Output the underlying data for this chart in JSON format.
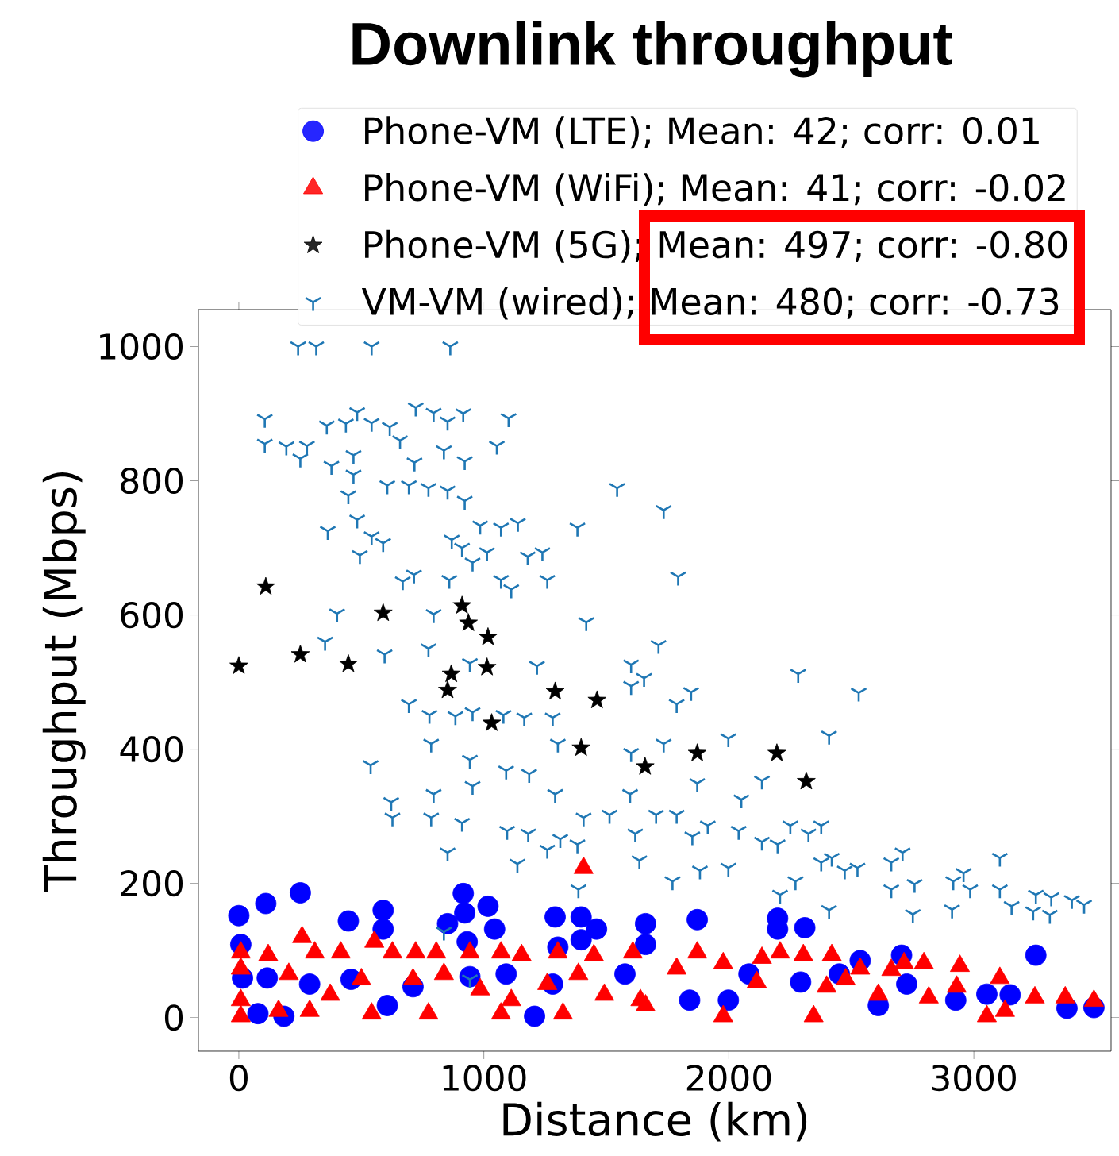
{
  "chart_data": {
    "type": "scatter",
    "title": "Downlink throughput",
    "xlabel": "Distance (km)",
    "ylabel": "Throughput (Mbps)",
    "xlim": [
      -165,
      3560
    ],
    "ylim": [
      -50,
      1055
    ],
    "xticks": [
      0,
      1000,
      2000,
      3000
    ],
    "yticks": [
      0,
      200,
      400,
      600,
      800,
      1000
    ],
    "grid": false,
    "legend": "top",
    "series": [
      {
        "name": "Phone-VM (LTE); Mean: 42; corr: 0.01",
        "color": "#0000ff",
        "marker": "circle",
        "x": [
          0,
          110,
          251,
          447,
          589,
          589,
          916,
          922,
          1017,
          1044,
          852,
          1291,
          1397,
          1460,
          1397,
          8,
          15,
          116,
          78,
          184,
          289,
          458,
          606,
          711,
          932,
          943,
          1091,
          1207,
          1302,
          1281,
          1576,
          1660,
          1871,
          2199,
          2310,
          1660,
          2199,
          2082,
          2293,
          2536,
          2705,
          2726,
          2926,
          3053,
          3148,
          3253,
          3380,
          1840,
          1998,
          2610,
          2451,
          3490
        ],
        "values": [
          152,
          170,
          186,
          144,
          160,
          132,
          185,
          156,
          166,
          132,
          140,
          150,
          150,
          132,
          116,
          109,
          59,
          59,
          6,
          2,
          50,
          57,
          18,
          46,
          113,
          61,
          65,
          2,
          105,
          50,
          65,
          140,
          146,
          148,
          134,
          109,
          132,
          65,
          53,
          85,
          93,
          50,
          26,
          35,
          34,
          93,
          14,
          26,
          26,
          18,
          65,
          15
        ]
      },
      {
        "name": "Phone-VM (WiFi); Mean: 41; corr: -0.02",
        "color": "#ff0000",
        "marker": "triangle",
        "x": [
          1407,
          8,
          8,
          8,
          8,
          120,
          258,
          310,
          416,
          553,
          627,
          722,
          806,
          943,
          1070,
          1154,
          1302,
          1449,
          1608,
          204,
          373,
          500,
          711,
          837,
          985,
          1112,
          1259,
          1386,
          1492,
          1639,
          162,
          289,
          542,
          774,
          1070,
          1323,
          1871,
          1977,
          2135,
          2209,
          2304,
          2420,
          2536,
          2663,
          2715,
          2796,
          2943,
          3106,
          1787,
          2114,
          2399,
          2477,
          2610,
          2816,
          2930,
          3249,
          3373,
          3053,
          3127,
          2346,
          1977,
          1660,
          3490
        ],
        "values": [
          223,
          97,
          73,
          26,
          2,
          93,
          120,
          97,
          97,
          113,
          97,
          97,
          97,
          97,
          97,
          93,
          97,
          93,
          97,
          65,
          34,
          57,
          57,
          65,
          42,
          26,
          50,
          65,
          34,
          26,
          10,
          10,
          6,
          6,
          6,
          6,
          97,
          81,
          89,
          97,
          93,
          93,
          73,
          71,
          81,
          81,
          77,
          59,
          73,
          53,
          46,
          57,
          34,
          30,
          46,
          30,
          30,
          2,
          10,
          2,
          2,
          18,
          25
        ]
      },
      {
        "name": "Phone-VM (5G); Mean: 497; corr: -0.80",
        "color": "#000000",
        "marker": "star",
        "x": [
          110,
          589,
          251,
          447,
          0,
          911,
          937,
          1017,
          867,
          1013,
          852,
          1032,
          1291,
          1462,
          1397,
          1658,
          1871,
          2196,
          2316
        ],
        "values": [
          642,
          603,
          541,
          527,
          524,
          614,
          588,
          567,
          512,
          522,
          488,
          439,
          486,
          473,
          402,
          374,
          394,
          394,
          352
        ]
      },
      {
        "name": "VM-VM (wired); Mean: 480; corr: -0.73",
        "color": "#1f77b4",
        "marker": "cross",
        "x": [
          242,
          316,
          542,
          863,
          106,
          106,
          194,
          251,
          278,
          359,
          437,
          483,
          542,
          616,
          658,
          722,
          795,
          852,
          916,
          1101,
          1053,
          837,
          922,
          717,
          468,
          378,
          468,
          606,
          694,
          774,
          852,
          922,
          447,
          1544,
          483,
          363,
          542,
          589,
          494,
          869,
          985,
          1070,
          1139,
          911,
          1013,
          954,
          1179,
          1239,
          1382,
          669,
          715,
          859,
          1070,
          1259,
          1112,
          401,
          795,
          1418,
          352,
          595,
          774,
          943,
          1217,
          1601,
          1734,
          1793,
          1713,
          2283,
          694,
          778,
          884,
          954,
          1080,
          1165,
          1281,
          1302,
          785,
          943,
          538,
          1091,
          1185,
          954,
          795,
          622,
          1291,
          1407,
          1513,
          785,
          911,
          627,
          1095,
          1181,
          1312,
          1618,
          1635,
          1382,
          852,
          1137,
          1259,
          1386,
          943,
          837,
          1654,
          1601,
          1846,
          1787,
          2530,
          1734,
          1998,
          2409,
          1601,
          2135,
          1871,
          2051,
          1597,
          1703,
          1787,
          1851,
          1914,
          1998,
          1882,
          1770,
          2040,
          2135,
          2199,
          2251,
          2325,
          2377,
          2377,
          2420,
          2473,
          2525,
          2209,
          2272,
          2409,
          2663,
          2709,
          2663,
          2758,
          2751,
          2916,
          2958,
          2985,
          2911,
          3106,
          3106,
          3154,
          3253,
          3316,
          3242,
          3310,
          3400,
          3450
        ],
        "values": [
          1000,
          1000,
          1000,
          1000,
          892,
          855,
          851,
          833,
          852,
          882,
          885,
          902,
          886,
          880,
          860,
          909,
          901,
          888,
          900,
          893,
          852,
          845,
          829,
          827,
          838,
          822,
          809,
          793,
          793,
          789,
          785,
          770,
          778,
          789,
          742,
          725,
          717,
          707,
          689,
          712,
          733,
          730,
          737,
          700,
          693,
          678,
          687,
          693,
          730,
          650,
          660,
          652,
          652,
          652,
          638,
          602,
          601,
          589,
          560,
          541,
          550,
          528,
          524,
          526,
          756,
          657,
          555,
          512,
          467,
          451,
          449,
          455,
          451,
          447,
          447,
          408,
          408,
          384,
          376,
          368,
          363,
          345,
          333,
          321,
          333,
          298,
          302,
          298,
          290,
          298,
          278,
          274,
          266,
          274,
          234,
          258,
          246,
          229,
          250,
          191,
          57,
          128,
          506,
          494,
          485,
          467,
          484,
          408,
          416,
          420,
          394,
          353,
          349,
          325,
          333,
          302,
          302,
          270,
          286,
          223,
          219,
          203,
          278,
          262,
          258,
          286,
          274,
          286,
          231,
          238,
          219,
          223,
          183,
          203,
          160,
          231,
          246,
          191,
          199,
          154,
          203,
          215,
          191,
          161,
          238,
          191,
          166,
          183,
          179,
          158,
          153,
          175,
          168
        ]
      }
    ]
  }
}
